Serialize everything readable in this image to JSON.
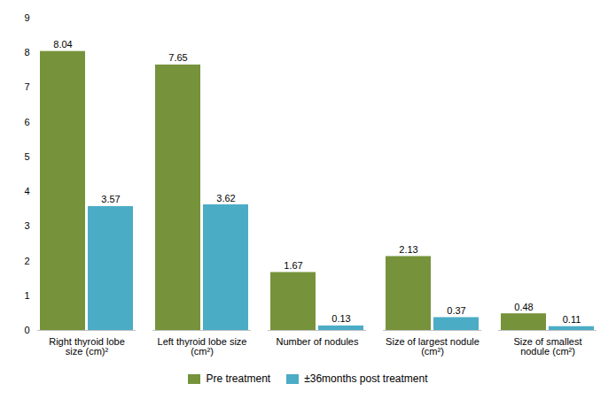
{
  "chart_data": {
    "type": "bar",
    "categories": [
      "Right thyroid lobe\nsize (cm)²",
      "Left thyroid lobe size\n(cm²)",
      "Number of nodules",
      "Size of largest nodule\n(cm²)",
      "Size of smallest\nnodule (cm²)"
    ],
    "series": [
      {
        "name": "Pre treatment",
        "color": "#76933c",
        "values": [
          8.04,
          7.65,
          1.67,
          2.13,
          0.48
        ]
      },
      {
        "name": "±36months post treatment",
        "color": "#4bacc6",
        "values": [
          3.57,
          3.62,
          0.13,
          0.37,
          0.11
        ]
      }
    ],
    "ylim": [
      0,
      9
    ],
    "yticks": [
      0,
      1,
      2,
      3,
      4,
      5,
      6,
      7,
      8,
      9
    ],
    "grid": false,
    "legend": "bottom",
    "data_labels": true
  }
}
